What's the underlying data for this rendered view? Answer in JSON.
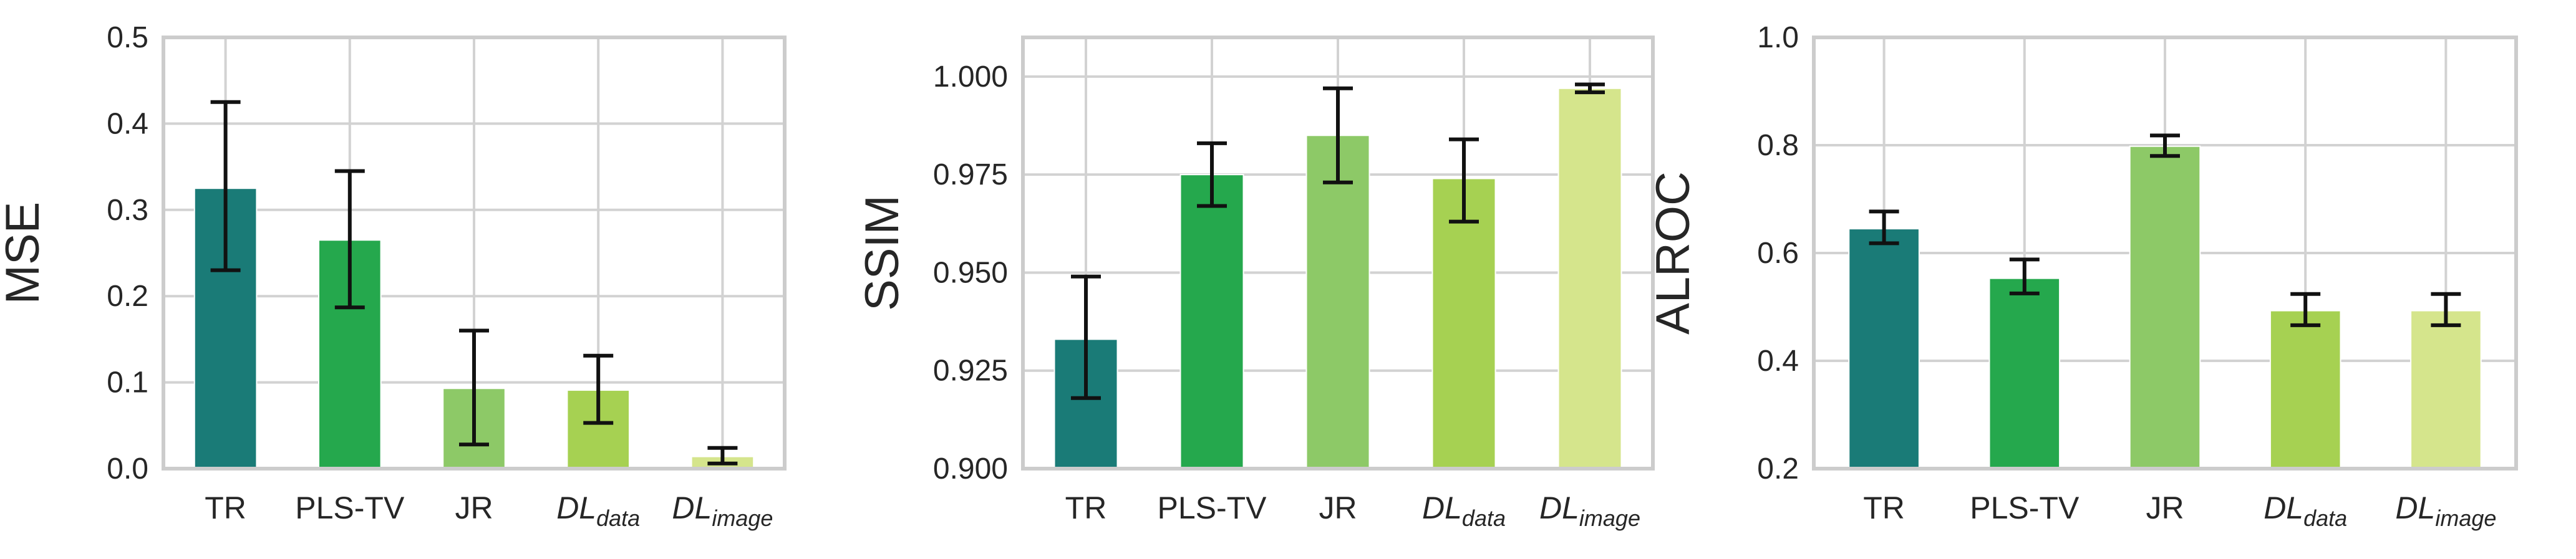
{
  "chart_data": [
    {
      "type": "bar",
      "ylabel": "MSE",
      "ylim": [
        0.0,
        0.5
      ],
      "yticks": [
        0.0,
        0.1,
        0.2,
        0.3,
        0.4,
        0.5
      ],
      "ytick_labels": [
        "0.0",
        "0.1",
        "0.2",
        "0.3",
        "0.4",
        "0.5"
      ],
      "categories": [
        {
          "label": "TR",
          "italic": false
        },
        {
          "label": "PLS-TV",
          "italic": false
        },
        {
          "label": "JR",
          "italic": false
        },
        {
          "label": "DL",
          "sub": "data",
          "italic": true
        },
        {
          "label": "DL",
          "sub": "image",
          "italic": true
        }
      ],
      "values": [
        0.325,
        0.265,
        0.093,
        0.091,
        0.014
      ],
      "err_low": [
        0.23,
        0.187,
        0.028,
        0.053,
        0.006
      ],
      "err_high": [
        0.425,
        0.345,
        0.16,
        0.131,
        0.024
      ],
      "colors": [
        "#1a7b77",
        "#25a84d",
        "#8dc967",
        "#a6d152",
        "#d5e58c"
      ],
      "grid": true
    },
    {
      "type": "bar",
      "ylabel": "SSIM",
      "ylim": [
        0.9,
        1.01
      ],
      "yticks": [
        0.9,
        0.925,
        0.95,
        0.975,
        1.0
      ],
      "ytick_labels": [
        "0.900",
        "0.925",
        "0.950",
        "0.975",
        "1.000"
      ],
      "categories": [
        {
          "label": "TR",
          "italic": false
        },
        {
          "label": "PLS-TV",
          "italic": false
        },
        {
          "label": "JR",
          "italic": false
        },
        {
          "label": "DL",
          "sub": "data",
          "italic": true
        },
        {
          "label": "DL",
          "sub": "image",
          "italic": true
        }
      ],
      "values": [
        0.933,
        0.975,
        0.985,
        0.974,
        0.997
      ],
      "err_low": [
        0.918,
        0.967,
        0.973,
        0.963,
        0.996
      ],
      "err_high": [
        0.949,
        0.983,
        0.997,
        0.984,
        0.998
      ],
      "colors": [
        "#1a7b77",
        "#25a84d",
        "#8dc967",
        "#a6d152",
        "#d5e58c"
      ],
      "grid": true
    },
    {
      "type": "bar",
      "ylabel": "ALROC",
      "ylim": [
        0.2,
        1.0
      ],
      "yticks": [
        0.2,
        0.4,
        0.6,
        0.8,
        1.0
      ],
      "ytick_labels": [
        "0.2",
        "0.4",
        "0.6",
        "0.8",
        "1.0"
      ],
      "categories": [
        {
          "label": "TR",
          "italic": false
        },
        {
          "label": "PLS-TV",
          "italic": false
        },
        {
          "label": "JR",
          "italic": false
        },
        {
          "label": "DL",
          "sub": "data",
          "italic": true
        },
        {
          "label": "DL",
          "sub": "image",
          "italic": true
        }
      ],
      "values": [
        0.645,
        0.553,
        0.798,
        0.493,
        0.493
      ],
      "err_low": [
        0.618,
        0.525,
        0.78,
        0.466,
        0.466
      ],
      "err_high": [
        0.677,
        0.588,
        0.818,
        0.524,
        0.524
      ],
      "colors": [
        "#1a7b77",
        "#25a84d",
        "#8dc967",
        "#a6d152",
        "#d5e58c"
      ],
      "grid": true
    }
  ]
}
